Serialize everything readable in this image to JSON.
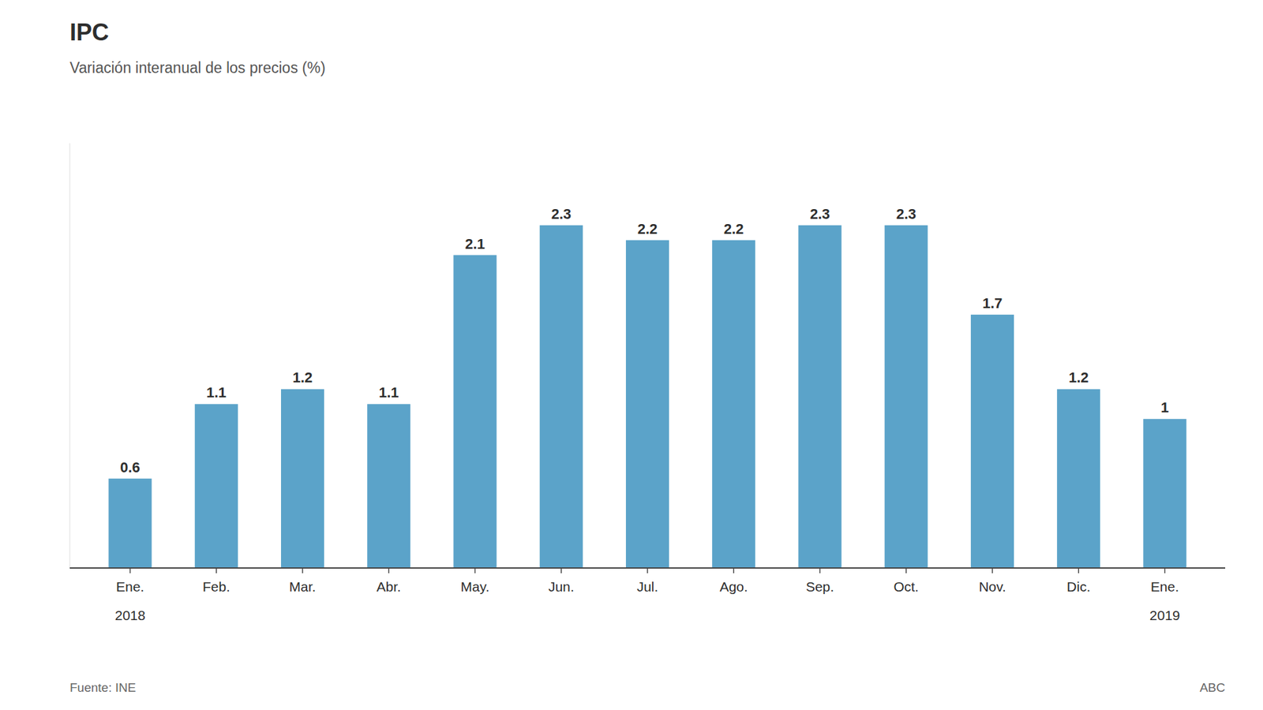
{
  "chart_data": {
    "type": "bar",
    "title": "IPC",
    "subtitle": "Variación interanual de los precios (%)",
    "categories": [
      "Ene.",
      "Feb.",
      "Mar.",
      "Abr.",
      "May.",
      "Jun.",
      "Jul.",
      "Ago.",
      "Sep.",
      "Oct.",
      "Nov.",
      "Dic.",
      "Ene."
    ],
    "values": [
      0.6,
      1.1,
      1.2,
      1.1,
      2.1,
      2.3,
      2.2,
      2.2,
      2.3,
      2.3,
      1.7,
      1.2,
      1.0
    ],
    "color": "#5BA3C9",
    "ylim": [
      0,
      2.85
    ],
    "grid": false,
    "data_labels": true,
    "tick_labels": "x",
    "annotations": [
      "2018",
      "2019"
    ],
    "source": "Fuente: INE",
    "credit": "ABC"
  }
}
